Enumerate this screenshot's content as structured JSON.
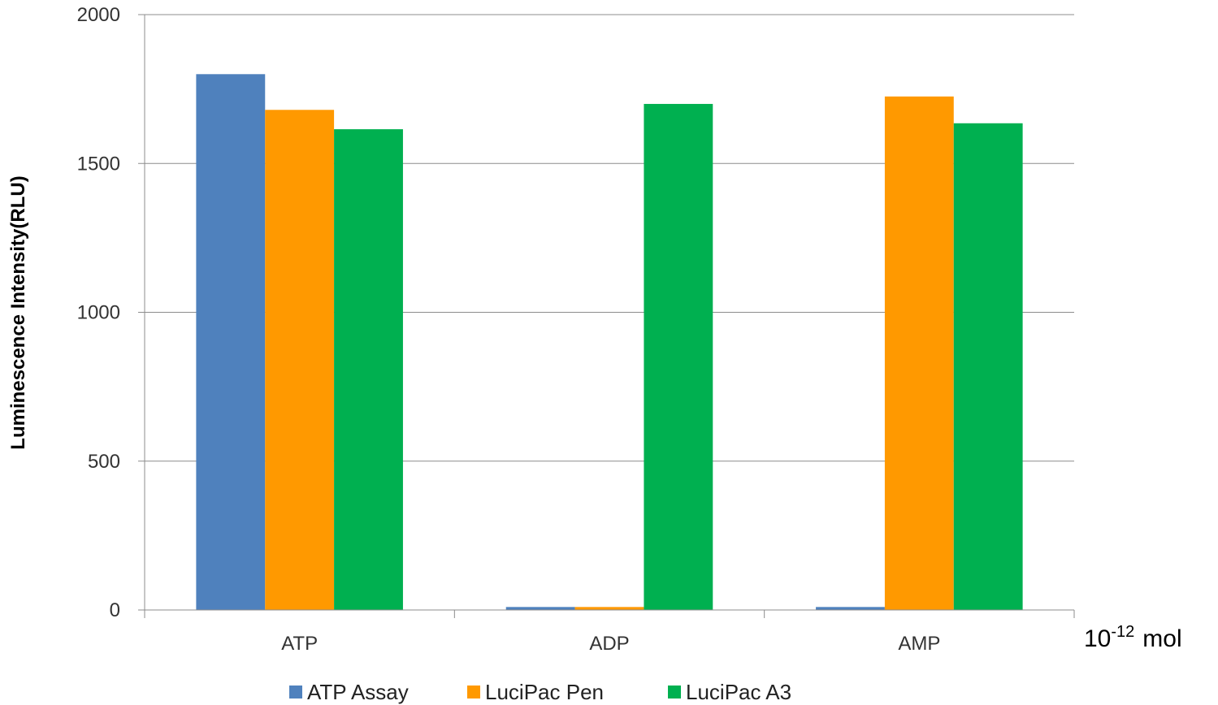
{
  "chart_data": {
    "type": "bar",
    "title": "",
    "xlabel": "",
    "ylabel": "Luminescence Intensity(RLU)",
    "x_unit": {
      "base": "10",
      "exponent": "-12",
      "unit": "mol"
    },
    "categories": [
      "ATP",
      "ADP",
      "AMP"
    ],
    "series": [
      {
        "name": "ATP Assay",
        "color": "#4f81bd",
        "values": [
          1800,
          10,
          10
        ]
      },
      {
        "name": "LuciPac Pen",
        "color": "#ff9900",
        "values": [
          1680,
          10,
          1725
        ]
      },
      {
        "name": "LuciPac A3",
        "color": "#00b050",
        "values": [
          1615,
          1700,
          1635
        ]
      }
    ],
    "ylim": [
      0,
      2000
    ],
    "yticks": [
      0,
      500,
      1000,
      1500,
      2000
    ],
    "grid": true,
    "legend_position": "bottom"
  }
}
